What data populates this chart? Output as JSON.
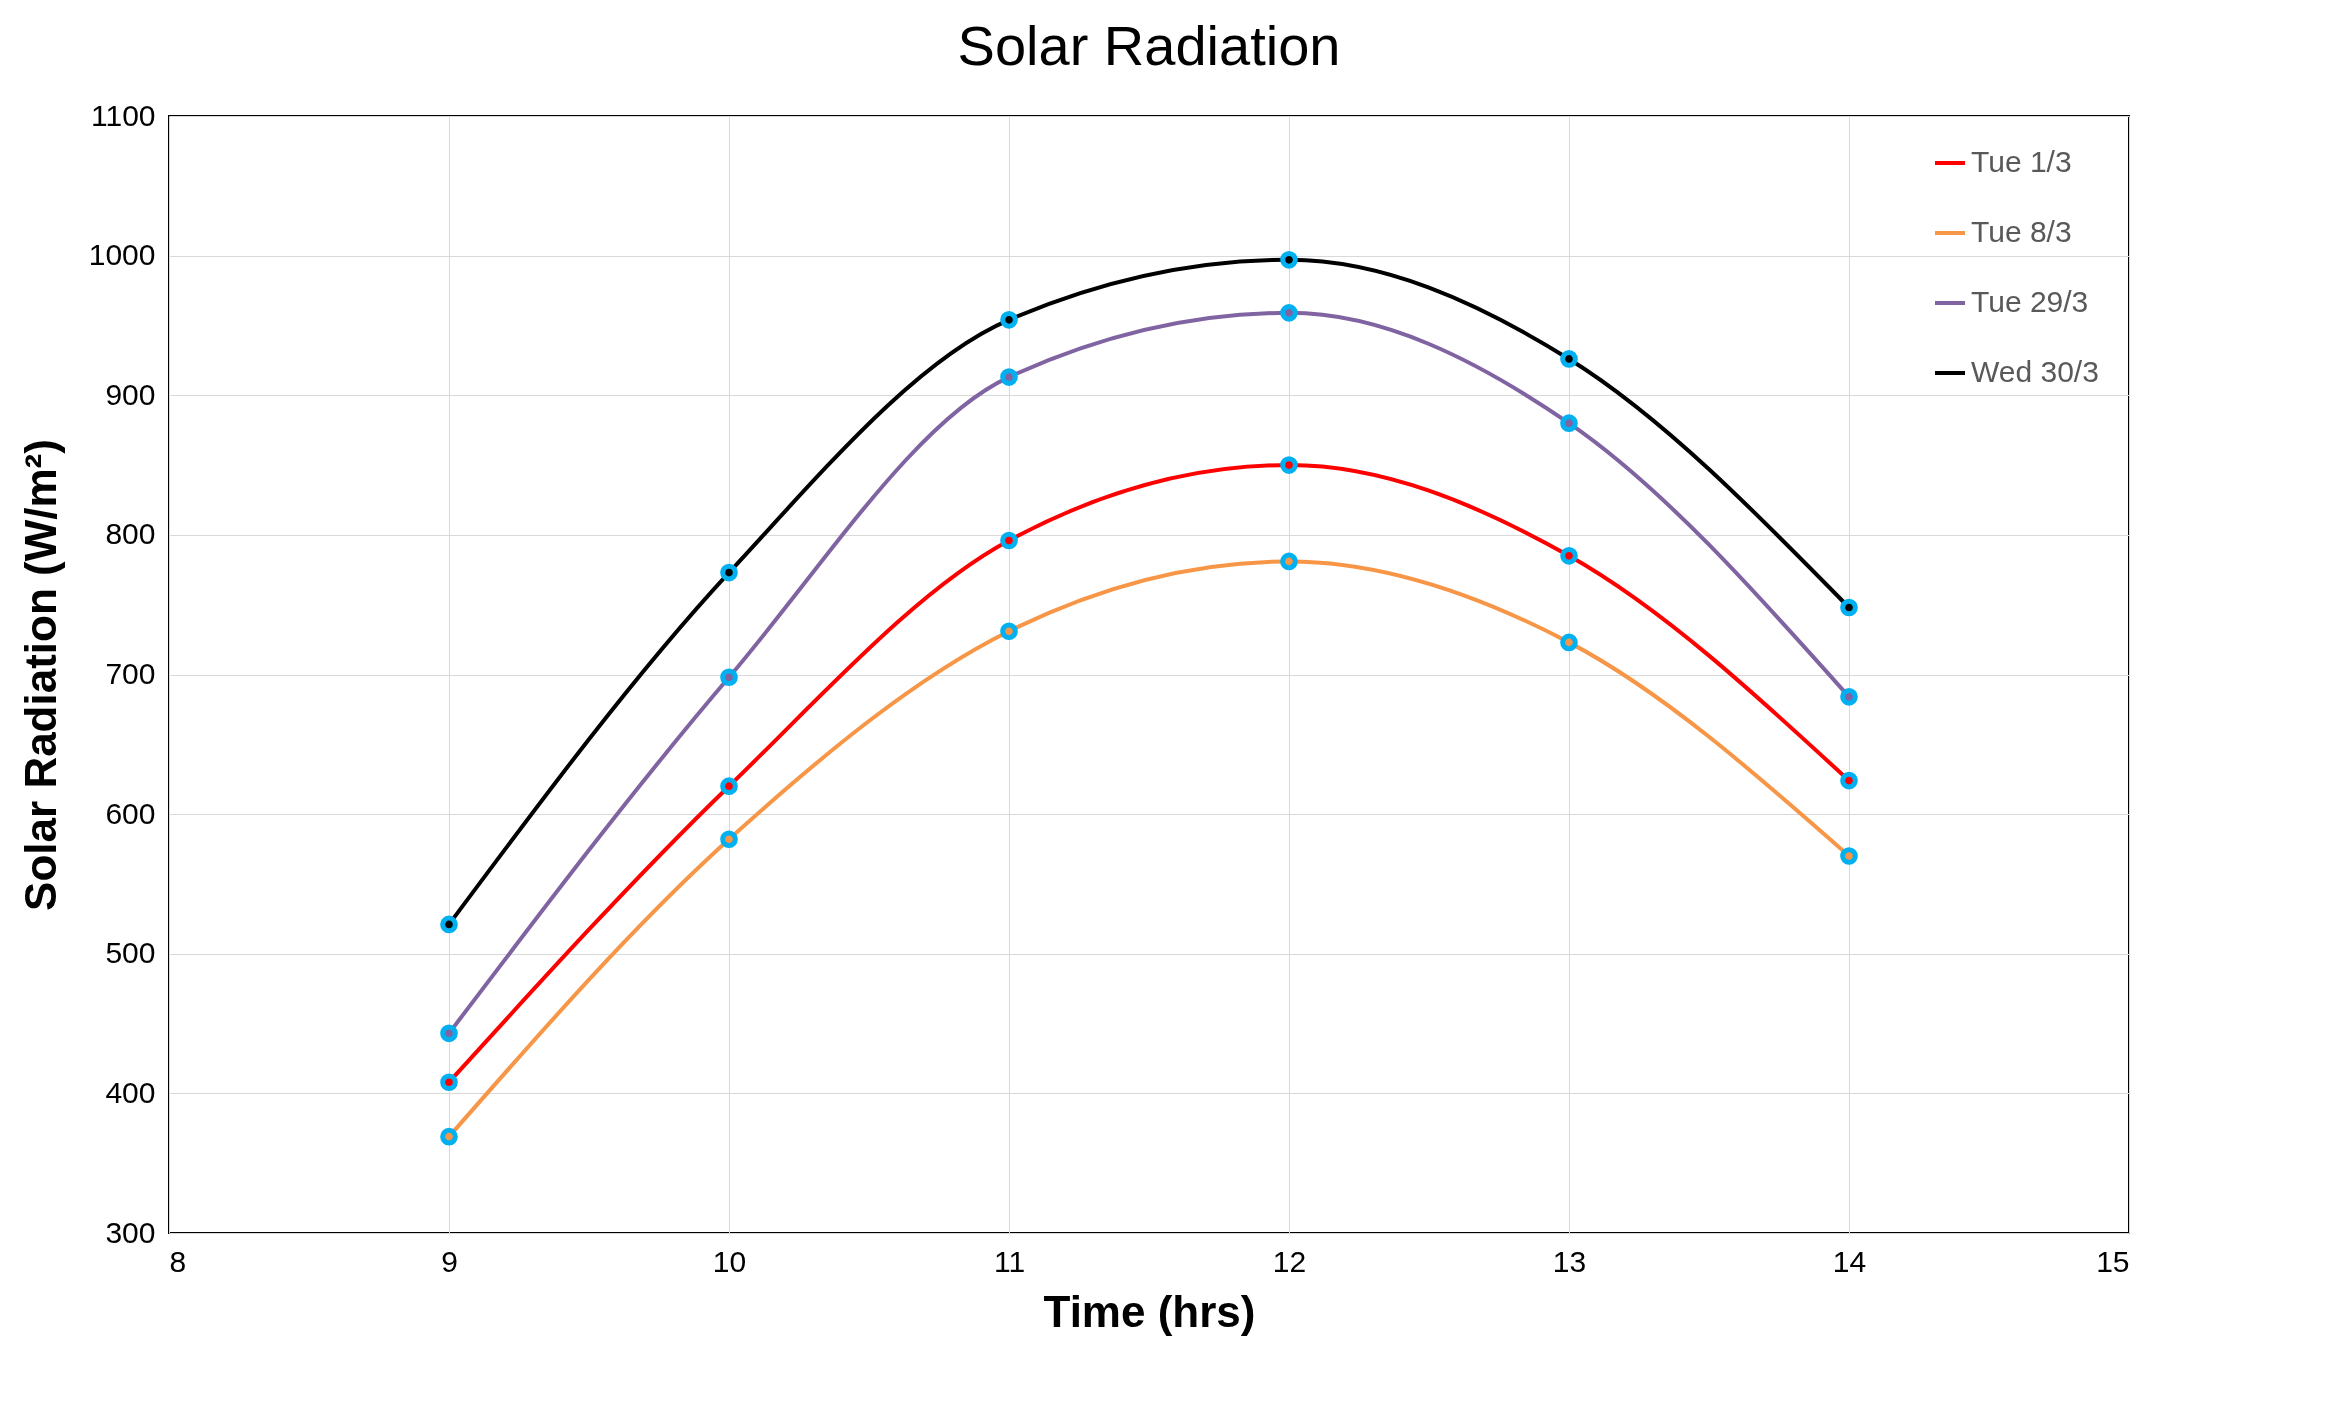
{
  "chart_data": {
    "type": "line",
    "title": "Solar Radiation",
    "xlabel": "Time (hrs)",
    "ylabel": "Solar Radiation (W/m²)",
    "x": [
      9,
      10,
      11,
      12,
      13,
      14
    ],
    "series": [
      {
        "name": "Tue 1/3",
        "color": "#ff0000",
        "values": [
          408,
          620,
          796,
          850,
          785,
          624
        ]
      },
      {
        "name": "Tue 8/3",
        "color": "#f79646",
        "values": [
          369,
          582,
          731,
          781,
          723,
          570
        ]
      },
      {
        "name": "Tue 29/3",
        "color": "#8064a2",
        "values": [
          443,
          698,
          913,
          959,
          880,
          684
        ]
      },
      {
        "name": "Wed 30/3",
        "color": "#000000",
        "values": [
          521,
          773,
          954,
          997,
          926,
          748
        ]
      }
    ],
    "xlim": [
      8,
      15
    ],
    "xticks": [
      8,
      9,
      10,
      11,
      12,
      13,
      14,
      15
    ],
    "ylim": [
      300,
      1100
    ],
    "yticks": [
      300,
      400,
      500,
      600,
      700,
      800,
      900,
      1000,
      1100
    ],
    "grid": true,
    "legend": "top right",
    "marker": "circle",
    "line_style": "solid"
  }
}
